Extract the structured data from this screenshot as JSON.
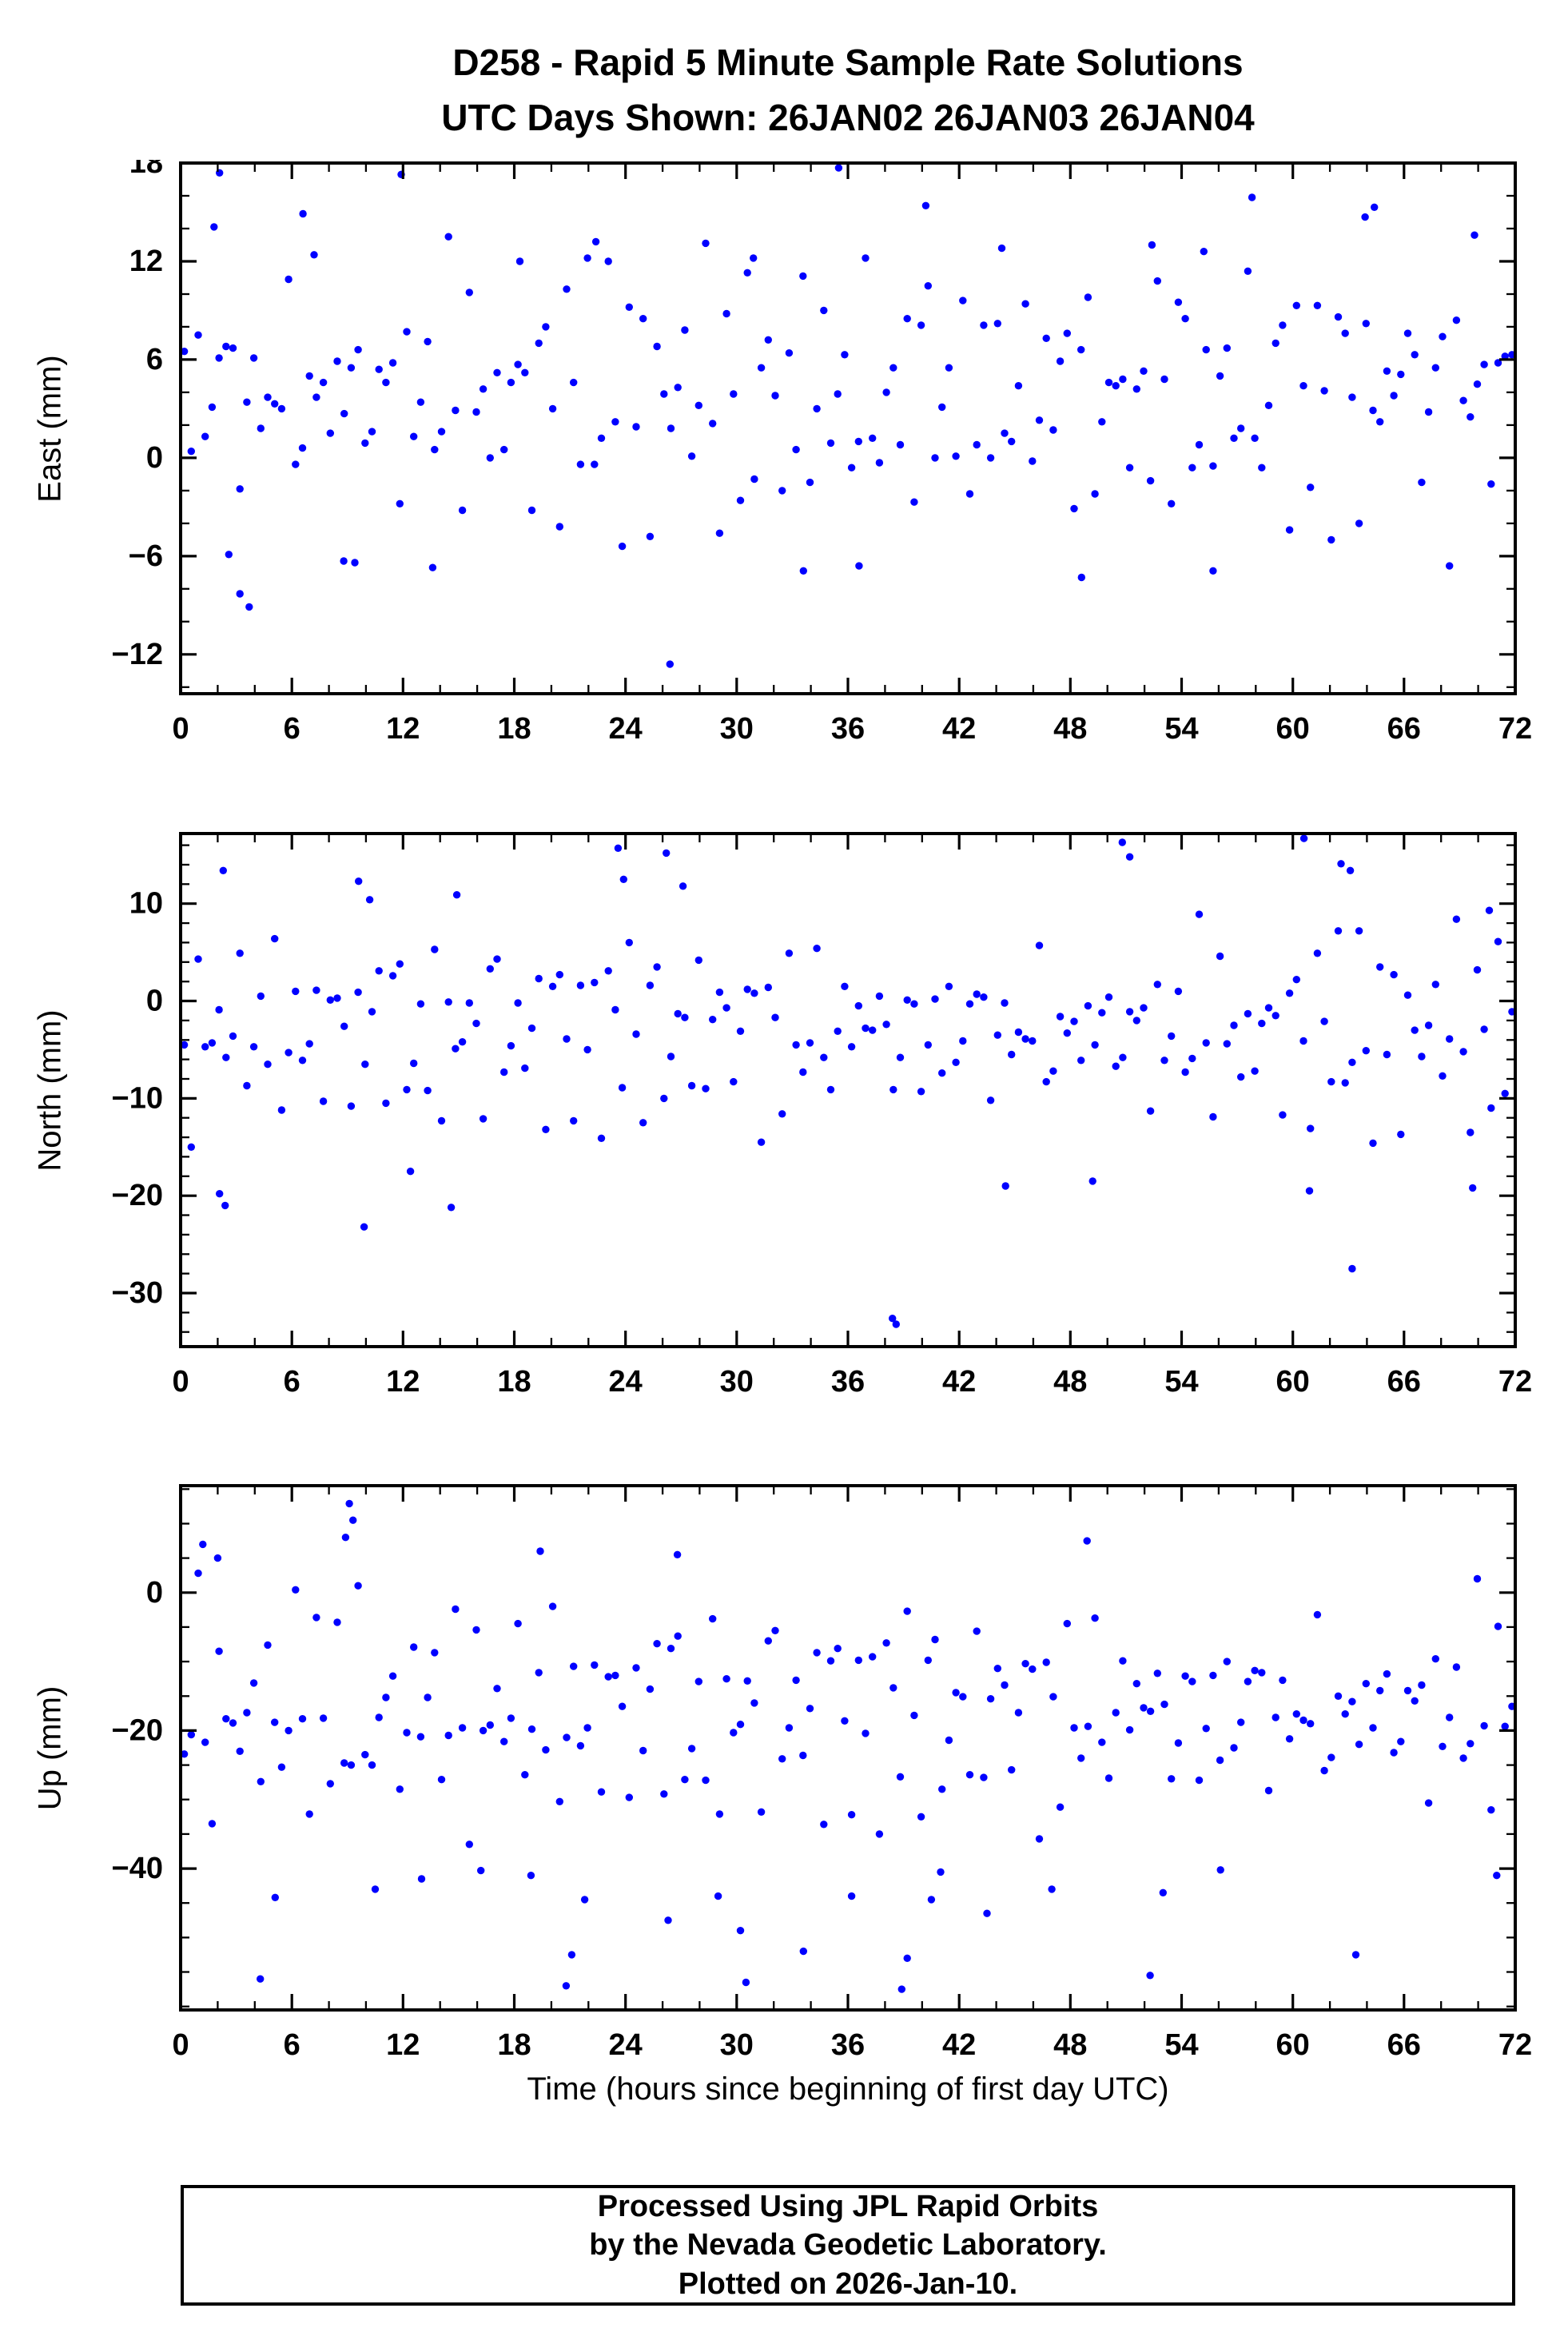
{
  "title_line1": "D258 - Rapid 5 Minute Sample Rate Solutions",
  "title_line2": "UTC Days Shown:  26JAN02 26JAN03 26JAN04",
  "x_axis_label": "Time (hours since beginning of first day UTC)",
  "footer": {
    "line1": "Processed Using JPL Rapid Orbits",
    "line2": "by the Nevada Geodetic Laboratory.",
    "line3": "Plotted on 2026-Jan-10."
  },
  "point_color": "#0000ff",
  "chart_data": [
    {
      "type": "scatter",
      "series_name": "East",
      "ylabel": "East (mm)",
      "xlim": [
        0,
        72
      ],
      "ylim": [
        -14.4,
        18
      ],
      "xticks": [
        0,
        6,
        12,
        18,
        24,
        30,
        36,
        42,
        48,
        54,
        60,
        66,
        72
      ],
      "yticks": [
        -12,
        -6,
        0,
        6,
        12,
        18
      ],
      "x_minor_step": 2,
      "y_minor_step": 2,
      "x_start": 0.2,
      "x_step": 0.375,
      "y_values": [
        6.5,
        0.4,
        7.5,
        1.3,
        3.1,
        6.1,
        6.8,
        6.7,
        -1.9,
        3.4,
        6.1,
        1.8,
        3.7,
        3.3,
        3.0,
        10.9,
        -0.4,
        0.6,
        5.0,
        3.7,
        4.6,
        1.5,
        5.9,
        2.7,
        5.5,
        6.6,
        0.9,
        1.6,
        5.4,
        4.6,
        5.8,
        -2.8,
        7.7,
        1.3,
        3.4,
        7.1,
        0.5,
        1.6,
        13.5,
        2.9,
        -3.2,
        10.1,
        2.8,
        4.2,
        0.0,
        5.2,
        0.5,
        4.6,
        5.7,
        5.2,
        -3.2,
        7.0,
        8.0,
        3.0,
        -4.2,
        10.3,
        4.6,
        -0.4,
        12.2,
        -0.4,
        1.2,
        12.0,
        2.2,
        -5.4,
        9.2,
        1.9,
        8.5,
        -4.8,
        6.8,
        3.9,
        1.8,
        4.3,
        7.8,
        0.1,
        3.2,
        13.1,
        2.1,
        -4.6,
        8.8,
        3.9,
        -2.6,
        11.3,
        -1.3,
        5.5,
        7.2,
        3.8,
        -2.0,
        6.4,
        0.5,
        11.1,
        -1.5,
        3.0,
        9.0,
        0.9,
        3.9,
        6.3,
        -0.6,
        1.0,
        12.2,
        1.2,
        -0.3,
        4.0,
        5.5,
        0.8,
        8.5,
        -2.7,
        8.1,
        10.5,
        0.0,
        3.1,
        5.5,
        0.1,
        9.6,
        -2.2,
        0.8,
        8.1,
        0.0,
        8.2,
        1.5,
        1.0,
        4.4,
        9.4,
        -0.2,
        2.3,
        7.3,
        1.7,
        5.9,
        7.6,
        -3.1,
        6.6,
        9.8,
        -2.2,
        2.2,
        4.6,
        4.4,
        4.8,
        -0.6,
        4.2,
        5.3,
        -1.4,
        10.8,
        4.8,
        -2.8,
        9.5,
        8.5,
        -0.6,
        0.8,
        6.6,
        -0.5,
        5.0,
        6.7,
        1.2,
        1.8,
        11.4,
        1.2,
        -0.6,
        3.2,
        7.0,
        8.1,
        -4.4,
        9.3,
        4.4,
        -1.8,
        9.3,
        4.1,
        -5.0,
        8.6,
        7.6,
        3.7,
        -4.0,
        8.2,
        2.9,
        2.2,
        5.3,
        3.8,
        5.1,
        7.6,
        6.3,
        -1.5,
        2.8,
        5.5,
        7.4,
        -6.6,
        8.4,
        3.5,
        2.5,
        4.5,
        5.7,
        -1.6,
        5.8,
        6.2,
        6.3
      ],
      "extra_points": [
        [
          1.8,
          14.1
        ],
        [
          2.1,
          17.4
        ],
        [
          11.9,
          17.3
        ],
        [
          35.5,
          17.7
        ],
        [
          6.6,
          14.9
        ],
        [
          7.2,
          12.4
        ],
        [
          22.4,
          13.2
        ],
        [
          40.2,
          15.4
        ],
        [
          57.8,
          15.9
        ],
        [
          63.9,
          14.7
        ],
        [
          64.4,
          15.3
        ],
        [
          69.8,
          13.6
        ],
        [
          26.4,
          -12.6
        ],
        [
          3.2,
          -8.3
        ],
        [
          3.7,
          -9.1
        ],
        [
          8.8,
          -6.3
        ],
        [
          9.4,
          -6.4
        ],
        [
          13.6,
          -6.7
        ],
        [
          33.6,
          -6.9
        ],
        [
          36.6,
          -6.6
        ],
        [
          48.6,
          -7.3
        ],
        [
          55.7,
          -6.9
        ],
        [
          2.6,
          -5.9
        ],
        [
          44.3,
          12.8
        ],
        [
          30.9,
          12.2
        ],
        [
          18.3,
          12.0
        ],
        [
          52.4,
          13.0
        ],
        [
          55.2,
          12.6
        ]
      ]
    },
    {
      "type": "scatter",
      "series_name": "North",
      "ylabel": "North (mm)",
      "xlim": [
        0,
        72
      ],
      "ylim": [
        -35.5,
        17.2
      ],
      "xticks": [
        0,
        6,
        12,
        18,
        24,
        30,
        36,
        42,
        48,
        54,
        60,
        66,
        72
      ],
      "yticks": [
        -30,
        -20,
        -10,
        0,
        10
      ],
      "x_minor_step": 2,
      "y_minor_step": 2,
      "x_start": 0.2,
      "x_step": 0.375,
      "y_values": [
        -4.5,
        -15.0,
        4.3,
        -4.7,
        -4.3,
        -0.9,
        -5.8,
        -3.6,
        4.9,
        -8.7,
        -4.7,
        0.5,
        -6.5,
        6.4,
        -11.2,
        -5.3,
        1.0,
        -6.1,
        -4.4,
        1.1,
        -10.3,
        0.1,
        0.3,
        -2.6,
        -10.8,
        0.9,
        -6.5,
        -1.1,
        3.1,
        -10.5,
        2.6,
        3.8,
        -9.1,
        -6.4,
        -0.3,
        -9.2,
        5.3,
        -12.3,
        -0.1,
        -4.9,
        -4.2,
        -0.2,
        -2.3,
        -12.1,
        3.3,
        4.3,
        -7.3,
        -4.6,
        -0.2,
        -6.9,
        -2.8,
        2.3,
        -13.2,
        1.5,
        2.7,
        -3.9,
        -12.3,
        1.6,
        -5.0,
        1.9,
        -14.1,
        3.1,
        -0.9,
        -8.9,
        6.0,
        -3.4,
        -12.5,
        1.6,
        3.5,
        -10.0,
        -5.7,
        -1.3,
        -1.7,
        -8.7,
        4.2,
        -9.0,
        -1.9,
        0.9,
        -0.7,
        -8.3,
        -3.1,
        1.2,
        0.8,
        -14.5,
        1.4,
        -1.7,
        -11.6,
        4.9,
        -4.5,
        -7.3,
        -4.3,
        5.4,
        -5.8,
        -9.1,
        -3.1,
        1.5,
        -4.7,
        -0.5,
        -2.8,
        -3.0,
        0.5,
        -2.4,
        -9.1,
        -5.8,
        0.1,
        -0.3,
        -9.3,
        -4.5,
        0.2,
        -7.4,
        1.5,
        -6.3,
        -4.1,
        -0.3,
        0.7,
        0.4,
        -10.2,
        -3.5,
        -0.2,
        -5.5,
        -3.2,
        -3.9,
        -4.1,
        5.7,
        -8.3,
        -7.2,
        -1.6,
        -3.3,
        -2.1,
        -6.1,
        -0.5,
        -4.5,
        -1.2,
        0.4,
        -6.7,
        -5.8,
        -1.1,
        -2.0,
        -0.7,
        -11.3,
        1.7,
        -6.1,
        -3.6,
        1.0,
        -7.3,
        -5.9,
        8.9,
        -4.3,
        -11.9,
        4.6,
        -4.4,
        -2.5,
        -7.8,
        -1.3,
        -7.2,
        -2.3,
        -0.7,
        -1.5,
        -11.7,
        0.8,
        2.2,
        -4.1,
        -13.1,
        4.9,
        -2.1,
        -8.3,
        7.2,
        -8.4,
        -6.3,
        7.2,
        -5.1,
        -14.6,
        3.5,
        -5.5,
        2.7,
        -13.7,
        0.6,
        -3.0,
        -5.7,
        -2.5,
        1.7,
        -7.7,
        -3.9,
        8.4,
        -5.2,
        -13.5,
        3.2,
        -2.9,
        -11.0,
        6.1,
        -9.5,
        -1.1
      ],
      "extra_points": [
        [
          2.3,
          13.4
        ],
        [
          23.6,
          15.7
        ],
        [
          26.2,
          15.2
        ],
        [
          50.8,
          16.3
        ],
        [
          51.2,
          14.8
        ],
        [
          60.6,
          16.7
        ],
        [
          62.6,
          14.1
        ],
        [
          63.1,
          13.4
        ],
        [
          70.6,
          9.3
        ],
        [
          2.1,
          -19.8
        ],
        [
          2.4,
          -21.0
        ],
        [
          9.9,
          -23.2
        ],
        [
          14.6,
          -21.2
        ],
        [
          12.4,
          -17.5
        ],
        [
          38.4,
          -32.6
        ],
        [
          38.6,
          -33.2
        ],
        [
          63.2,
          -27.5
        ],
        [
          60.9,
          -19.5
        ],
        [
          69.7,
          -19.2
        ],
        [
          44.5,
          -19.0
        ],
        [
          49.2,
          -18.5
        ],
        [
          9.6,
          12.3
        ],
        [
          14.9,
          10.9
        ],
        [
          23.9,
          12.5
        ],
        [
          27.1,
          11.8
        ],
        [
          10.2,
          10.4
        ]
      ]
    },
    {
      "type": "scatter",
      "series_name": "Up",
      "ylabel": "Up (mm)",
      "xlabel": "Time (hours since beginning of first day UTC)",
      "xlim": [
        0,
        72
      ],
      "ylim": [
        -60.5,
        15.5
      ],
      "xticks": [
        0,
        6,
        12,
        18,
        24,
        30,
        36,
        42,
        48,
        54,
        60,
        66,
        72
      ],
      "yticks": [
        -40,
        -20,
        0
      ],
      "x_minor_step": 2,
      "y_minor_step": 5,
      "x_start": 0.2,
      "x_step": 0.375,
      "y_values": [
        -23.4,
        -20.6,
        2.8,
        -21.7,
        -33.5,
        -8.5,
        -18.3,
        -18.9,
        -23.0,
        -17.4,
        -13.1,
        -27.4,
        -7.6,
        -18.8,
        -25.3,
        -20.0,
        0.4,
        -18.3,
        -32.1,
        -3.6,
        -18.2,
        -27.7,
        -4.3,
        -24.7,
        -25.0,
        1.0,
        -23.5,
        -25.0,
        -18.1,
        -15.2,
        -12.1,
        -28.5,
        -20.3,
        -7.9,
        -20.9,
        -15.2,
        -8.7,
        -27.1,
        -20.7,
        -2.4,
        -19.6,
        -36.5,
        -5.4,
        -20.0,
        -19.2,
        -13.9,
        -21.6,
        -18.2,
        -4.5,
        -26.4,
        -19.8,
        -11.6,
        -22.8,
        -2.0,
        -30.3,
        -21.0,
        -10.7,
        -22.2,
        -19.6,
        -10.5,
        -28.9,
        -12.2,
        -12.0,
        -16.5,
        -29.7,
        -10.9,
        -22.9,
        -14.0,
        -7.4,
        -29.2,
        -8.1,
        -6.3,
        -27.1,
        -22.6,
        -12.9,
        -27.2,
        -3.8,
        -32.1,
        -12.5,
        -20.3,
        -19.1,
        -12.8,
        -16.0,
        -31.8,
        -7.0,
        -5.5,
        -24.1,
        -19.6,
        -12.7,
        -23.6,
        -16.8,
        -8.7,
        -33.6,
        -9.9,
        -8.1,
        -18.6,
        -32.2,
        -9.8,
        -20.4,
        -9.3,
        -35.0,
        -7.3,
        -13.8,
        -26.7,
        -2.7,
        -17.8,
        -32.5,
        -9.8,
        -6.8,
        -28.5,
        -21.4,
        -14.5,
        -15.1,
        -26.4,
        -5.6,
        -26.8,
        -15.4,
        -11.0,
        -13.4,
        -25.7,
        -17.4,
        -10.3,
        -11.1,
        -35.7,
        -10.1,
        -15.1,
        -31.1,
        -4.5,
        -19.6,
        -24.0,
        -19.4,
        -3.7,
        -21.7,
        -26.9,
        -17.4,
        -9.9,
        -19.9,
        -13.2,
        -16.7,
        -17.2,
        -11.7,
        -16.2,
        -27.0,
        -21.8,
        -12.1,
        -12.9,
        -27.2,
        -19.7,
        -12.0,
        -24.3,
        -10.0,
        -22.5,
        -18.8,
        -12.9,
        -11.3,
        -11.6,
        -28.7,
        -18.1,
        -12.7,
        -21.2,
        -17.6,
        -18.5,
        -19.0,
        -3.2,
        -25.8,
        -23.9,
        -15.0,
        -17.6,
        -15.8,
        -22.0,
        -13.2,
        -19.6,
        -14.2,
        -11.8,
        -23.2,
        -21.6,
        -14.2,
        -15.7,
        -13.4,
        -30.5,
        -9.6,
        -22.3,
        -18.1,
        -10.8,
        -24.0,
        -21.9,
        2.0,
        -19.3,
        -31.5,
        -4.9,
        -19.4,
        -16.5
      ],
      "extra_points": [
        [
          9.1,
          12.9
        ],
        [
          9.3,
          10.5
        ],
        [
          8.9,
          8.0
        ],
        [
          48.9,
          7.5
        ],
        [
          19.4,
          6.0
        ],
        [
          1.2,
          7.0
        ],
        [
          2.0,
          5.0
        ],
        [
          26.8,
          5.5
        ],
        [
          4.3,
          -56.0
        ],
        [
          20.8,
          -57.0
        ],
        [
          21.1,
          -52.5
        ],
        [
          30.5,
          -56.5
        ],
        [
          30.2,
          -49.0
        ],
        [
          38.9,
          -57.5
        ],
        [
          39.2,
          -53.0
        ],
        [
          26.3,
          -47.5
        ],
        [
          33.6,
          -52.0
        ],
        [
          36.2,
          -44.0
        ],
        [
          43.5,
          -46.5
        ],
        [
          52.3,
          -55.5
        ],
        [
          63.4,
          -52.5
        ],
        [
          21.8,
          -44.5
        ],
        [
          29.0,
          -44.0
        ],
        [
          47.0,
          -43.0
        ],
        [
          53.0,
          -43.5
        ],
        [
          10.5,
          -43.0
        ],
        [
          13.0,
          -41.5
        ],
        [
          18.9,
          -41.0
        ],
        [
          41.0,
          -40.5
        ],
        [
          56.1,
          -40.2
        ],
        [
          71.0,
          -41.0
        ],
        [
          40.5,
          -44.5
        ],
        [
          16.2,
          -40.3
        ],
        [
          5.1,
          -44.2
        ]
      ]
    }
  ]
}
